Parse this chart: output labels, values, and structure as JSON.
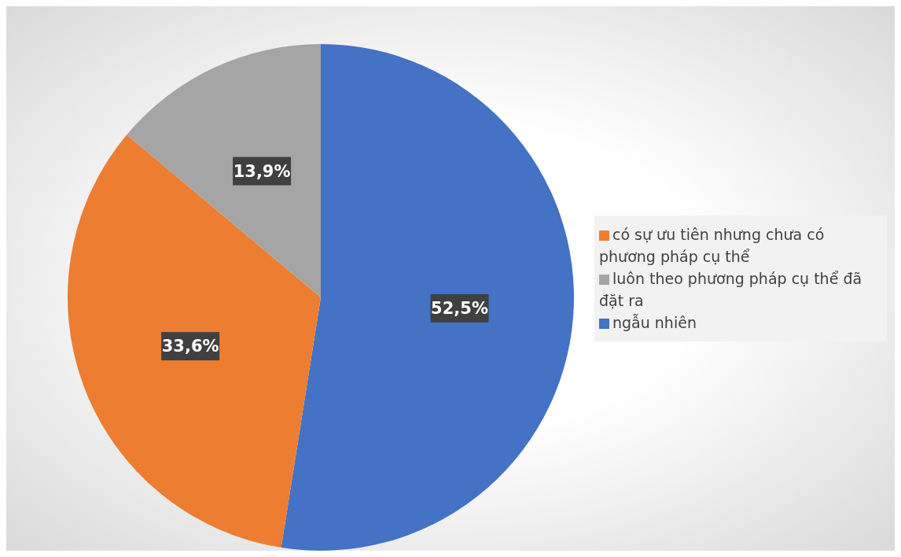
{
  "chart_data": {
    "type": "pie",
    "categories": [
      "ngẫu nhiên",
      "có sự ưu tiên nhưng chưa có phương pháp cụ thể",
      "luôn theo phương pháp cụ thể đã đặt ra"
    ],
    "values": [
      52.5,
      33.6,
      13.9
    ],
    "colors": [
      "#4472c4",
      "#ed7d31",
      "#a5a5a5"
    ],
    "value_labels": [
      "52,5%",
      "33,6%",
      "13,9%"
    ],
    "legend": "right"
  }
}
